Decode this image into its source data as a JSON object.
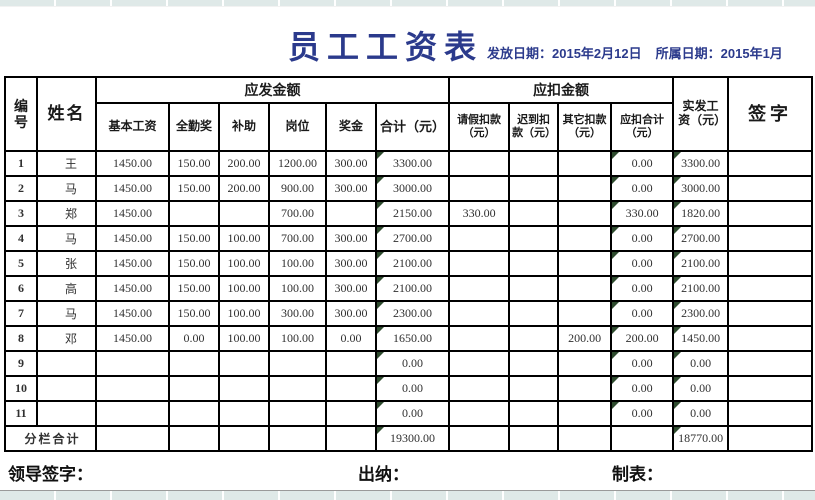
{
  "colors": {
    "title_navy": "#2b3a8c",
    "grid_black": "#000000",
    "formula_indicator_green": "#2e4b2e",
    "strip_gray": "#dfe9e8"
  },
  "header": {
    "title": "员工工资表",
    "issue_date_label": "发放日期：",
    "issue_date": "2015年2月12日",
    "period_label": "所属日期：",
    "period": "2015年1月"
  },
  "table": {
    "col_no": "编号",
    "col_name": "姓名",
    "group_payable": "应发金额",
    "group_deduction": "应扣金额",
    "payable_cols": [
      "基本工资",
      "全勤奖",
      "补助",
      "岗位",
      "奖金",
      "合计（元）"
    ],
    "deduction_cols": [
      "请假扣款（元）",
      "迟到扣款（元）",
      "其它扣款（元）",
      "应扣合计（元）"
    ],
    "col_net": "实发工资（元）",
    "col_sign": "签字",
    "rows": [
      {
        "no": "1",
        "name": "王",
        "base": "1450.00",
        "attendance": "150.00",
        "allowance": "200.00",
        "post": "1200.00",
        "bonus": "300.00",
        "total": "3300.00",
        "leave": "",
        "late": "",
        "other": "",
        "deduct_total": "0.00",
        "net": "3300.00",
        "sign": ""
      },
      {
        "no": "2",
        "name": "马",
        "base": "1450.00",
        "attendance": "150.00",
        "allowance": "200.00",
        "post": "900.00",
        "bonus": "300.00",
        "total": "3000.00",
        "leave": "",
        "late": "",
        "other": "",
        "deduct_total": "0.00",
        "net": "3000.00",
        "sign": ""
      },
      {
        "no": "3",
        "name": "郑",
        "base": "1450.00",
        "attendance": "",
        "allowance": "",
        "post": "700.00",
        "bonus": "",
        "total": "2150.00",
        "leave": "330.00",
        "late": "",
        "other": "",
        "deduct_total": "330.00",
        "net": "1820.00",
        "sign": ""
      },
      {
        "no": "4",
        "name": "马",
        "base": "1450.00",
        "attendance": "150.00",
        "allowance": "100.00",
        "post": "700.00",
        "bonus": "300.00",
        "total": "2700.00",
        "leave": "",
        "late": "",
        "other": "",
        "deduct_total": "0.00",
        "net": "2700.00",
        "sign": ""
      },
      {
        "no": "5",
        "name": "张",
        "base": "1450.00",
        "attendance": "150.00",
        "allowance": "100.00",
        "post": "100.00",
        "bonus": "300.00",
        "total": "2100.00",
        "leave": "",
        "late": "",
        "other": "",
        "deduct_total": "0.00",
        "net": "2100.00",
        "sign": ""
      },
      {
        "no": "6",
        "name": "高",
        "base": "1450.00",
        "attendance": "150.00",
        "allowance": "100.00",
        "post": "100.00",
        "bonus": "300.00",
        "total": "2100.00",
        "leave": "",
        "late": "",
        "other": "",
        "deduct_total": "0.00",
        "net": "2100.00",
        "sign": ""
      },
      {
        "no": "7",
        "name": "马",
        "base": "1450.00",
        "attendance": "150.00",
        "allowance": "100.00",
        "post": "300.00",
        "bonus": "300.00",
        "total": "2300.00",
        "leave": "",
        "late": "",
        "other": "",
        "deduct_total": "0.00",
        "net": "2300.00",
        "sign": ""
      },
      {
        "no": "8",
        "name": "邓",
        "base": "1450.00",
        "attendance": "0.00",
        "allowance": "100.00",
        "post": "100.00",
        "bonus": "0.00",
        "total": "1650.00",
        "leave": "",
        "late": "",
        "other": "200.00",
        "deduct_total": "200.00",
        "net": "1450.00",
        "sign": ""
      },
      {
        "no": "9",
        "name": "",
        "base": "",
        "attendance": "",
        "allowance": "",
        "post": "",
        "bonus": "",
        "total": "0.00",
        "leave": "",
        "late": "",
        "other": "",
        "deduct_total": "0.00",
        "net": "0.00",
        "sign": ""
      },
      {
        "no": "10",
        "name": "",
        "base": "",
        "attendance": "",
        "allowance": "",
        "post": "",
        "bonus": "",
        "total": "0.00",
        "leave": "",
        "late": "",
        "other": "",
        "deduct_total": "0.00",
        "net": "0.00",
        "sign": ""
      },
      {
        "no": "11",
        "name": "",
        "base": "",
        "attendance": "",
        "allowance": "",
        "post": "",
        "bonus": "",
        "total": "0.00",
        "leave": "",
        "late": "",
        "other": "",
        "deduct_total": "0.00",
        "net": "0.00",
        "sign": ""
      }
    ],
    "subtotal": {
      "label": "分栏合计",
      "total_payable": "19300.00",
      "total_net": "18770.00"
    }
  },
  "footer": {
    "leader_label": "领导签字：",
    "cashier_label": "出纳：",
    "preparer_label": "制表："
  }
}
